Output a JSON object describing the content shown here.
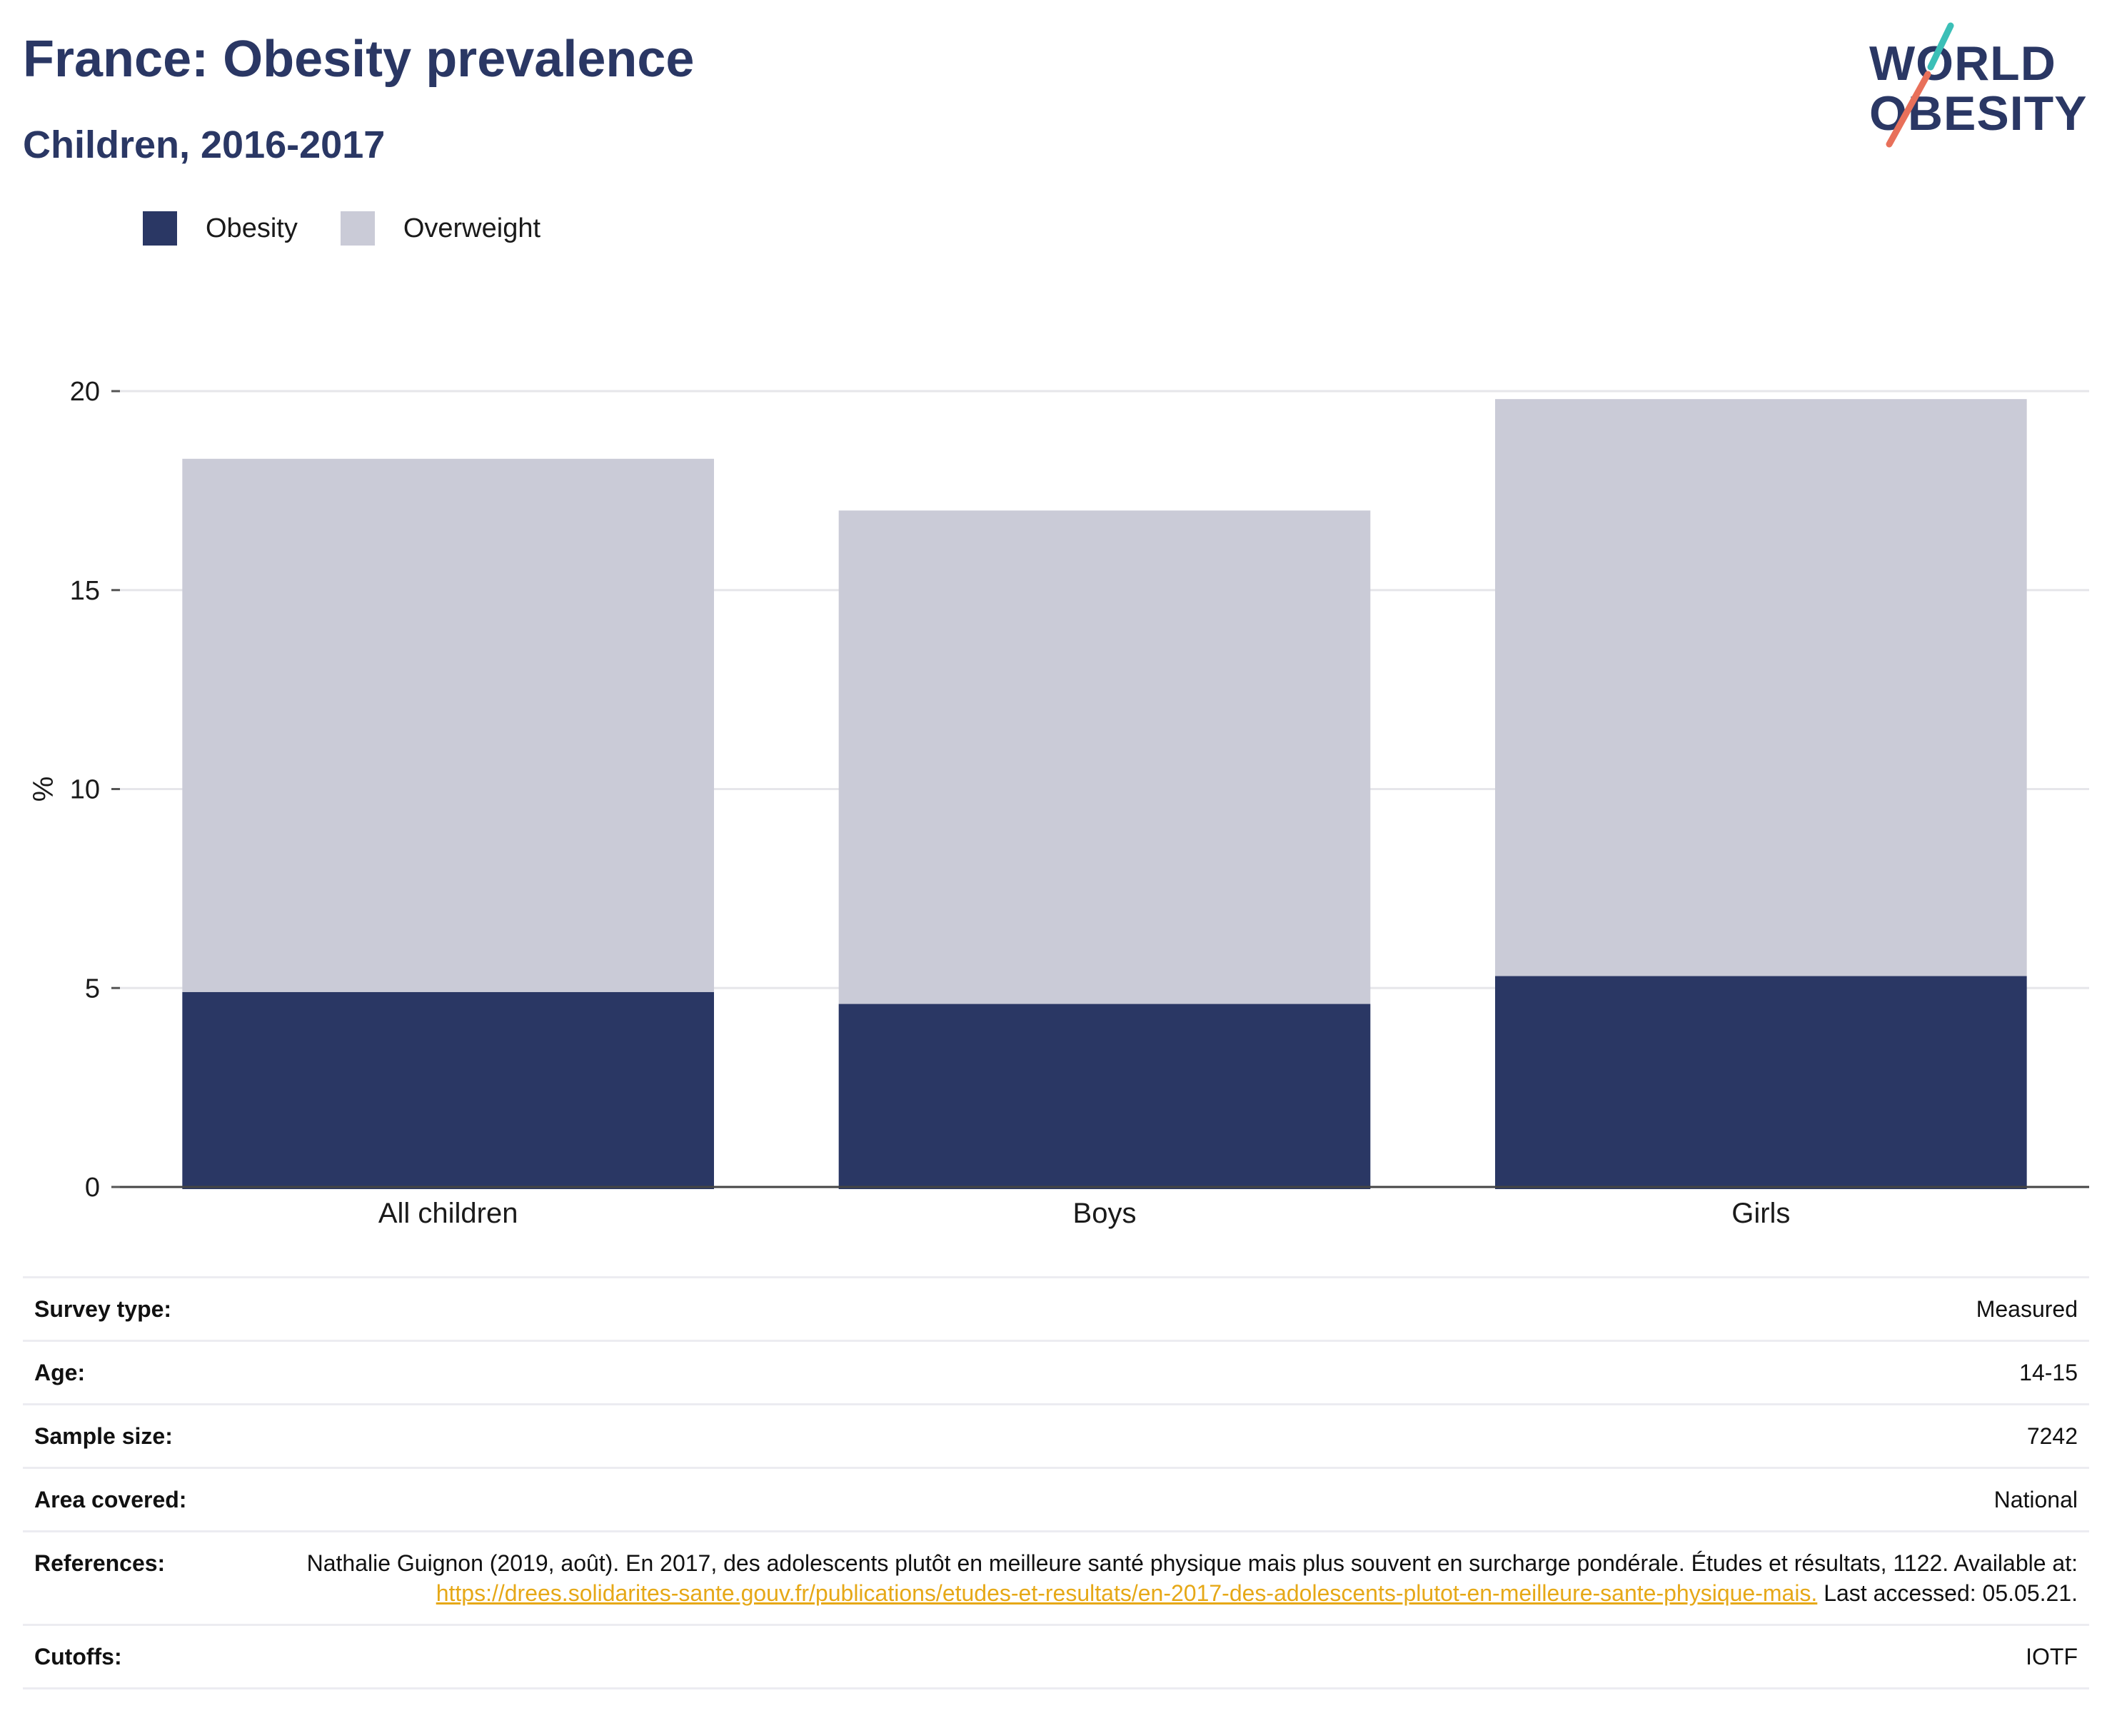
{
  "header": {
    "title": "France: Obesity prevalence",
    "subtitle": "Children, 2016-2017"
  },
  "logo": {
    "line1": "WORLD",
    "line2": "OBESITY"
  },
  "legend": [
    {
      "label": "Obesity",
      "color": "#2a3764"
    },
    {
      "label": "Overweight",
      "color": "#cacbd7"
    }
  ],
  "chart_data": {
    "type": "bar",
    "stacked": true,
    "categories": [
      "All children",
      "Boys",
      "Girls"
    ],
    "series": [
      {
        "name": "Obesity",
        "color": "#2a3764",
        "values": [
          4.9,
          4.6,
          5.3
        ]
      },
      {
        "name": "Overweight",
        "color": "#cacbd7",
        "values": [
          13.4,
          12.4,
          14.5
        ]
      }
    ],
    "totals": [
      18.3,
      17.0,
      19.8
    ],
    "ylabel": "%",
    "ylim": [
      0,
      20
    ],
    "yticks": [
      0,
      5,
      10,
      15,
      20
    ],
    "grid": true,
    "legend_position": "top-left"
  },
  "meta": [
    {
      "label": "Survey type:",
      "value": "Measured"
    },
    {
      "label": "Age:",
      "value": "14-15"
    },
    {
      "label": "Sample size:",
      "value": "7242"
    },
    {
      "label": "Area covered:",
      "value": "National"
    },
    {
      "label": "References:",
      "value_pre": "Nathalie Guignon (2019, août). En 2017, des adolescents plutôt en meilleure santé physique mais plus souvent en surcharge pondérale. Études et résultats, 1122. Available at: ",
      "link": "https://drees.solidarites-sante.gouv.fr/publications/etudes-et-resultats/en-2017-des-adolescents-plutot-en-meilleure-sante-physique-mais.",
      "value_post": " Last accessed: 05.05.21."
    },
    {
      "label": "Cutoffs:",
      "value": "IOTF"
    }
  ]
}
